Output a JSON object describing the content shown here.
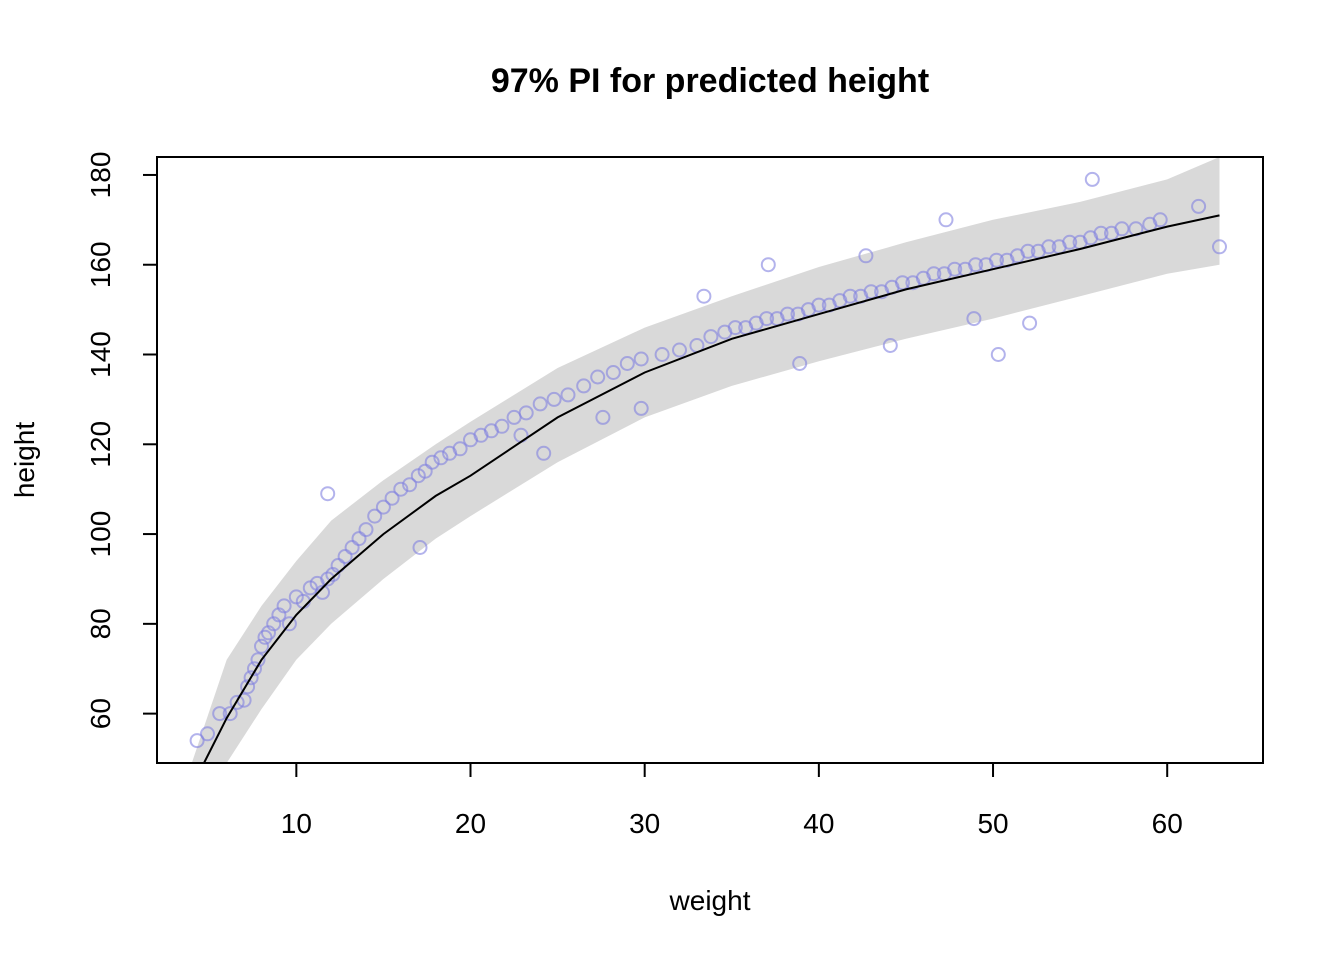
{
  "chart_data": {
    "type": "scatter",
    "title": "97% PI for predicted height",
    "xlabel": "weight",
    "ylabel": "height",
    "xlim": [
      2.0,
      65.5
    ],
    "ylim": [
      49,
      184
    ],
    "xticks": [
      10,
      20,
      30,
      40,
      50,
      60
    ],
    "yticks": [
      60,
      80,
      100,
      120,
      140,
      160,
      180
    ],
    "colors": {
      "points": "#8080e0",
      "band": "#d9d9d9",
      "line": "#000000"
    },
    "grid": false,
    "legend": "none",
    "mean_line": {
      "x": [
        4.7,
        6,
        8,
        10,
        12,
        15,
        18,
        20,
        25,
        30,
        35,
        40,
        45,
        50,
        55,
        60,
        63
      ],
      "y": [
        49,
        59,
        72,
        82,
        90,
        100,
        108.5,
        113,
        126,
        136,
        143.5,
        149,
        154.5,
        159,
        163.5,
        168.5,
        171
      ]
    },
    "interval_band": {
      "x": [
        4.0,
        6,
        8,
        10,
        12,
        15,
        18,
        20,
        25,
        30,
        35,
        40,
        45,
        50,
        55,
        60,
        63
      ],
      "lower": [
        49,
        49,
        61,
        72,
        80,
        90,
        99,
        104,
        116,
        126,
        133,
        138.5,
        143.5,
        148,
        153,
        158,
        160
      ],
      "upper": [
        49,
        72,
        84,
        94,
        103,
        112,
        120,
        125,
        137,
        146,
        153,
        159.5,
        165,
        170,
        174,
        179,
        184
      ]
    },
    "points": {
      "x": [
        4.3,
        4.9,
        5.6,
        6.2,
        6.6,
        7.0,
        7.2,
        7.4,
        7.6,
        7.8,
        8.0,
        8.2,
        8.4,
        8.7,
        9.0,
        9.3,
        9.6,
        10.0,
        10.4,
        10.8,
        11.2,
        11.5,
        11.8,
        12.1,
        12.4,
        12.8,
        13.2,
        13.6,
        14.0,
        14.5,
        15.0,
        15.5,
        16.0,
        16.5,
        17.0,
        17.4,
        17.8,
        18.3,
        18.8,
        19.4,
        20.0,
        20.6,
        21.2,
        21.8,
        22.5,
        23.2,
        24.0,
        24.8,
        25.6,
        26.5,
        27.3,
        28.2,
        29.0,
        29.8,
        31.0,
        32.0,
        33.0,
        33.8,
        34.6,
        35.2,
        35.8,
        36.4,
        37.0,
        37.6,
        38.2,
        38.8,
        39.4,
        40.0,
        40.6,
        41.2,
        41.8,
        42.4,
        43.0,
        43.6,
        44.2,
        44.8,
        45.4,
        46.0,
        46.6,
        47.2,
        47.8,
        48.4,
        49.0,
        49.6,
        50.2,
        50.8,
        51.4,
        52.0,
        52.6,
        53.2,
        53.8,
        54.4,
        55.0,
        55.6,
        56.2,
        56.8,
        57.4,
        58.2,
        59.0,
        59.6,
        61.8,
        63.0,
        11.8,
        17.1,
        24.2,
        29.8,
        37.1,
        50.3,
        55.7,
        44.1,
        47.3,
        48.9,
        52.1,
        42.7,
        38.9,
        33.4,
        27.6,
        22.9
      ],
      "y": [
        54,
        55.5,
        60,
        60,
        62.5,
        63,
        66,
        68,
        70,
        72,
        75,
        77,
        78,
        80,
        82,
        84,
        80,
        86,
        85,
        88,
        89,
        87,
        90,
        91,
        93,
        95,
        97,
        99,
        101,
        104,
        106,
        108,
        110,
        111,
        113,
        114,
        116,
        117,
        118,
        119,
        121,
        122,
        123,
        124,
        126,
        127,
        129,
        130,
        131,
        133,
        135,
        136,
        138,
        139,
        140,
        141,
        142,
        144,
        145,
        146,
        146,
        147,
        148,
        148,
        149,
        149,
        150,
        151,
        151,
        152,
        153,
        153,
        154,
        154,
        155,
        156,
        156,
        157,
        158,
        158,
        159,
        159,
        160,
        160,
        161,
        161,
        162,
        163,
        163,
        164,
        164,
        165,
        165,
        166,
        167,
        167,
        168,
        168,
        169,
        170,
        173,
        164,
        109,
        97,
        118,
        128,
        160,
        140,
        179,
        142,
        170,
        148,
        147,
        162,
        138,
        153,
        126,
        122
      ]
    }
  }
}
